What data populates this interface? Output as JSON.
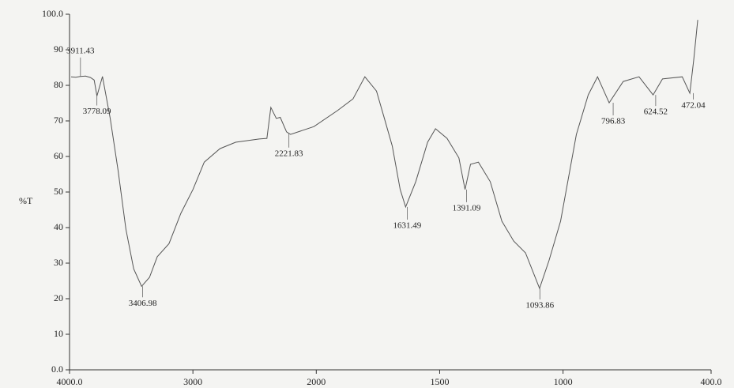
{
  "chart_data": {
    "type": "line",
    "y_label": "%T",
    "xlim": [
      4000,
      400
    ],
    "x_scale_change": 2000,
    "ylim": [
      0,
      100
    ],
    "xticks": [
      {
        "value": 4000,
        "label": "4000.0"
      },
      3000,
      2000,
      1500,
      1000,
      {
        "value": 400,
        "label": "400.0"
      }
    ],
    "yticks": [
      {
        "value": 0,
        "label": "0.0"
      },
      10,
      20,
      30,
      40,
      50,
      60,
      70,
      80,
      90,
      {
        "value": 100,
        "label": "100.0"
      }
    ],
    "series": [
      {
        "color": "#555555",
        "x": [
          3987,
          3950,
          3911.43,
          3870,
          3830,
          3800,
          3778,
          3733,
          3670,
          3606,
          3543,
          3480,
          3416,
          3352,
          3289,
          3194,
          3098,
          3000,
          2908,
          2781,
          2654,
          2463,
          2400,
          2368,
          2324,
          2292,
          2241,
          2209,
          2019,
          1914,
          1851,
          1803,
          1756,
          1724,
          1692,
          1660,
          1638,
          1597,
          1549,
          1517,
          1470,
          1422,
          1397,
          1375,
          1343,
          1295,
          1248,
          1200,
          1152,
          1095,
          1057,
          1010,
          946,
          898,
          860,
          813,
          756,
          692,
          635,
          597,
          517,
          486,
          470,
          454
        ],
        "values": [
          82.4,
          82.3,
          82.5,
          82.6,
          82.2,
          81.5,
          77,
          82.5,
          70.7,
          56,
          39.5,
          28.4,
          23.5,
          26,
          31.8,
          35.5,
          44,
          50.7,
          58.4,
          62.2,
          64,
          64.9,
          65.1,
          73.8,
          70.7,
          71,
          66.9,
          66.2,
          68.4,
          72.9,
          76.2,
          82.4,
          78.4,
          70.7,
          62.9,
          50.7,
          45.8,
          52.9,
          64,
          67.8,
          65.1,
          59.6,
          50.7,
          57.8,
          58.4,
          52.9,
          41.8,
          36.2,
          32.9,
          22.9,
          30.7,
          41.8,
          66.2,
          77.3,
          82.4,
          75.1,
          81.1,
          82.4,
          77.3,
          81.8,
          82.4,
          77.8,
          87.3,
          98.4
        ]
      }
    ],
    "annotations": [
      {
        "x": 3911.43,
        "y": 82.5
      },
      {
        "x": 3778.09,
        "y": 77
      },
      {
        "x": 3406.98,
        "y": 23.5
      },
      {
        "x": 2221.83,
        "y": 66.5
      },
      {
        "x": 1631.49,
        "y": 45.8
      },
      {
        "x": 1391.09,
        "y": 50.7
      },
      {
        "x": 1093.86,
        "y": 22.9
      },
      {
        "x": 796.83,
        "y": 75.1
      },
      {
        "x": 624.52,
        "y": 77.3
      },
      {
        "x": 472.04,
        "y": 77.8
      }
    ]
  }
}
